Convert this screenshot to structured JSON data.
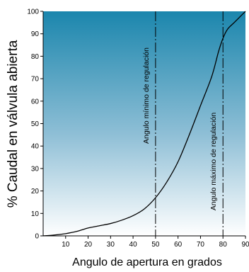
{
  "chart_data": {
    "type": "line",
    "title": "",
    "xlabel": "Angulo de apertura en grados",
    "ylabel": "% Caudal en válvula abierta",
    "xlim": [
      0,
      90
    ],
    "ylim": [
      0,
      100
    ],
    "x_ticks": [
      "10",
      "20",
      "30",
      "40",
      "50",
      "60",
      "70",
      "80",
      "90"
    ],
    "y_ticks": [
      "0",
      "10",
      "20",
      "30",
      "40",
      "50",
      "60",
      "70",
      "80",
      "90",
      "100"
    ],
    "grid": false,
    "background": "gradient",
    "colors": {
      "gradient_top": "#1b86ad",
      "gradient_bottom": "#ffffff",
      "curve": "#000000",
      "axis": "#000000"
    },
    "series": [
      {
        "x": [
          0,
          5,
          10,
          15,
          20,
          25,
          30,
          35,
          40,
          45,
          50,
          55,
          60,
          65,
          70,
          75,
          78,
          80,
          82,
          85,
          88,
          90
        ],
        "y": [
          0,
          0.4,
          1,
          2,
          3.5,
          4.5,
          5.5,
          7,
          9,
          12,
          17,
          24,
          33,
          45,
          58,
          71,
          82,
          88,
          92,
          95,
          98,
          100
        ]
      }
    ],
    "reference_lines": [
      {
        "x": 50,
        "label": "Angulo mínimo de regulación"
      },
      {
        "x": 80,
        "label": "Angulo máximo de regulación"
      }
    ]
  }
}
